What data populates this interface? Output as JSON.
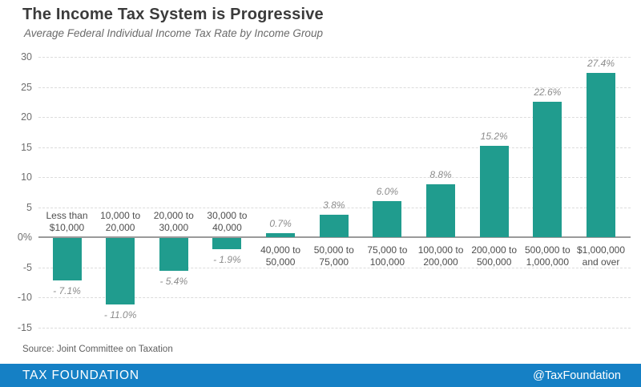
{
  "header": {
    "title": "The Income Tax System is Progressive",
    "subtitle": "Average Federal Individual Income Tax Rate by Income Group"
  },
  "chart_data": {
    "type": "bar",
    "title": "The Income Tax System is Progressive",
    "subtitle": "Average Federal Individual Income Tax Rate by Income Group",
    "categories": [
      [
        "Less than",
        "$10,000"
      ],
      [
        "10,000 to",
        "20,000"
      ],
      [
        "20,000 to",
        "30,000"
      ],
      [
        "30,000 to",
        "40,000"
      ],
      [
        "40,000 to",
        "50,000"
      ],
      [
        "50,000 to",
        "75,000"
      ],
      [
        "75,000 to",
        "100,000"
      ],
      [
        "100,000 to",
        "200,000"
      ],
      [
        "200,000 to",
        "500,000"
      ],
      [
        "500,000 to",
        "1,000,000"
      ],
      [
        "$1,000,000",
        "and over"
      ]
    ],
    "values": [
      -7.1,
      -11.0,
      -5.4,
      -1.9,
      0.7,
      3.8,
      6.0,
      8.8,
      15.2,
      22.6,
      27.4
    ],
    "value_labels": [
      "- 7.1%",
      "- 11.0%",
      "- 5.4%",
      "- 1.9%",
      "0.7%",
      "3.8%",
      "6.0%",
      "8.8%",
      "15.2%",
      "22.6%",
      "27.4%"
    ],
    "y_tick_values": [
      30,
      25,
      20,
      15,
      10,
      5,
      0,
      -5,
      -10,
      -15
    ],
    "y_tick_labels": [
      "30",
      "25",
      "20",
      "15",
      "10",
      "5",
      "0%",
      "-5",
      "-10",
      "-15"
    ],
    "ylim": [
      -15,
      30
    ],
    "xlabel": "",
    "ylabel": "",
    "grid": true,
    "legend": "none"
  },
  "source": {
    "label": "Source: Joint Committee on Taxation"
  },
  "footer": {
    "brand": "TAX FOUNDATION",
    "handle": "@TaxFoundation"
  },
  "colors": {
    "bar": "#209C8E",
    "footer_bg": "#1580C5",
    "zero_line": "#9A9A9A",
    "gridline": "#DCDCDC"
  }
}
